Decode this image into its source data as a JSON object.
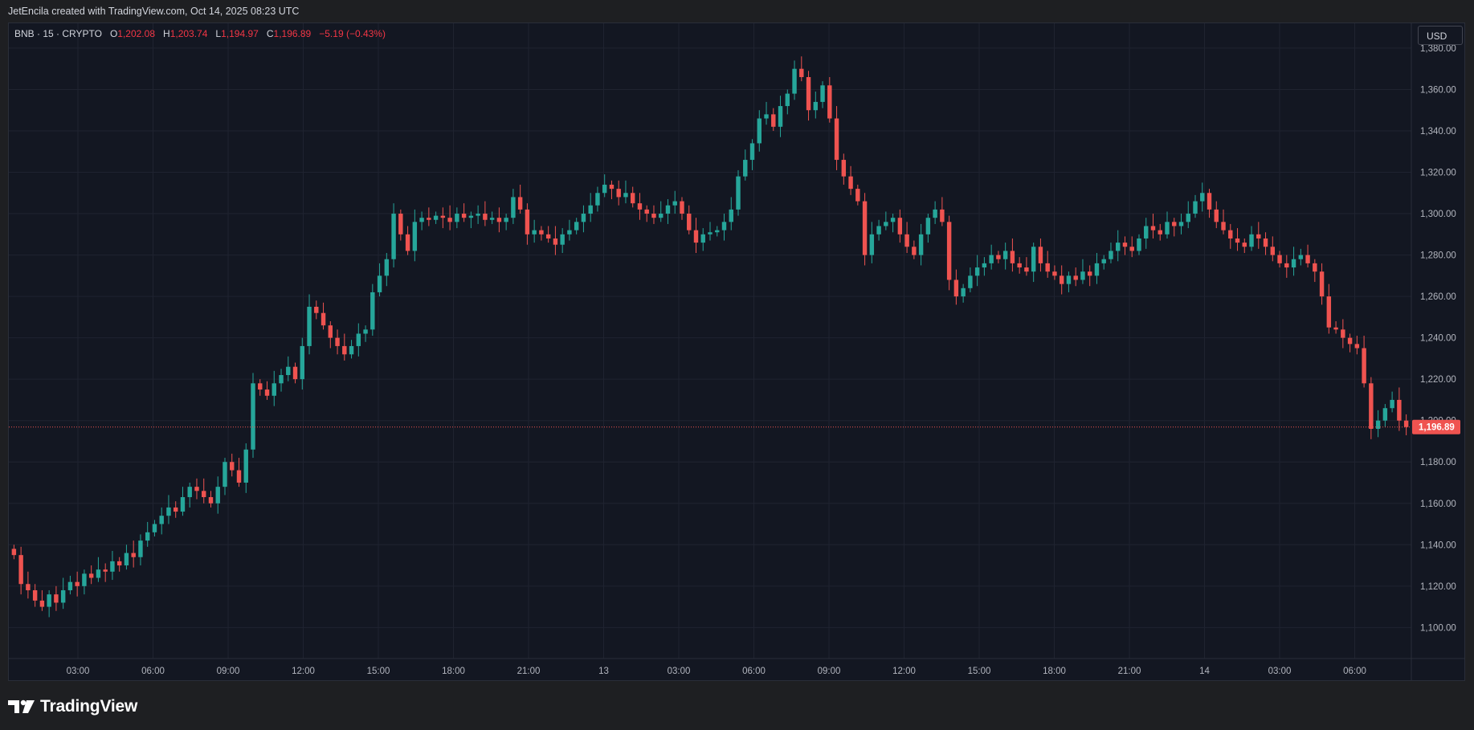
{
  "header": {
    "attribution": "JetEncila created with TradingView.com, Oct 14, 2025 08:23 UTC"
  },
  "legend": {
    "symbol": "BNB · 15 · CRYPTO",
    "open_label": "O",
    "open": "1,202.08",
    "high_label": "H",
    "high": "1,203.74",
    "low_label": "L",
    "low": "1,194.97",
    "close_label": "C",
    "close": "1,196.89",
    "change": "−5.19 (−0.43%)"
  },
  "toolbar": {
    "currency": "USD"
  },
  "footer": {
    "brand": "TradingView"
  },
  "colors": {
    "up": "#26a69a",
    "down": "#ef5350",
    "background": "#131722",
    "grid": "#1f2330",
    "last_price": "#ef5350"
  },
  "chart_data": {
    "type": "candlestick",
    "symbol": "BNB",
    "interval": "15",
    "exchange": "CRYPTO",
    "ylim": [
      1085,
      1392
    ],
    "y_ticks": [
      "1,100.00",
      "1,120.00",
      "1,140.00",
      "1,160.00",
      "1,180.00",
      "1,200.00",
      "1,220.00",
      "1,240.00",
      "1,260.00",
      "1,280.00",
      "1,300.00",
      "1,320.00",
      "1,340.00",
      "1,360.00",
      "1,380.00"
    ],
    "x_ticks": [
      "03:00",
      "06:00",
      "09:00",
      "12:00",
      "15:00",
      "18:00",
      "21:00",
      "13",
      "03:00",
      "06:00",
      "09:00",
      "12:00",
      "15:00",
      "18:00",
      "21:00",
      "14",
      "03:00",
      "06:00"
    ],
    "last_price": "1,196.89",
    "last_price_value": 1196.89,
    "grid": true,
    "close_series": [
      1135,
      1121,
      1118,
      1113,
      1110,
      1116,
      1112,
      1118,
      1122,
      1120,
      1126,
      1124,
      1128,
      1127,
      1132,
      1130,
      1136,
      1134,
      1142,
      1146,
      1150,
      1154,
      1158,
      1156,
      1163,
      1168,
      1166,
      1163,
      1160,
      1168,
      1180,
      1176,
      1170,
      1186,
      1218,
      1215,
      1212,
      1218,
      1222,
      1226,
      1220,
      1236,
      1255,
      1252,
      1246,
      1240,
      1236,
      1232,
      1236,
      1242,
      1244,
      1262,
      1270,
      1278,
      1300,
      1290,
      1282,
      1296,
      1298,
      1297,
      1299,
      1298,
      1296,
      1300,
      1298,
      1299,
      1300,
      1297,
      1298,
      1296,
      1298,
      1308,
      1302,
      1290,
      1292,
      1290,
      1288,
      1285,
      1290,
      1292,
      1296,
      1300,
      1304,
      1310,
      1314,
      1312,
      1308,
      1310,
      1305,
      1302,
      1300,
      1298,
      1300,
      1304,
      1306,
      1300,
      1292,
      1286,
      1290,
      1291,
      1292,
      1296,
      1302,
      1318,
      1326,
      1334,
      1346,
      1348,
      1342,
      1352,
      1358,
      1370,
      1366,
      1350,
      1354,
      1362,
      1346,
      1326,
      1318,
      1312,
      1306,
      1280,
      1290,
      1294,
      1296,
      1298,
      1290,
      1284,
      1280,
      1290,
      1298,
      1302,
      1296,
      1268,
      1260,
      1264,
      1270,
      1274,
      1276,
      1280,
      1278,
      1282,
      1276,
      1274,
      1272,
      1284,
      1276,
      1272,
      1270,
      1266,
      1270,
      1268,
      1272,
      1270,
      1276,
      1278,
      1282,
      1286,
      1284,
      1282,
      1288,
      1294,
      1292,
      1290,
      1296,
      1294,
      1296,
      1300,
      1306,
      1310,
      1302,
      1296,
      1292,
      1288,
      1286,
      1284,
      1290,
      1288,
      1284,
      1280,
      1276,
      1274,
      1278,
      1280,
      1276,
      1272,
      1260,
      1245,
      1244,
      1240,
      1237,
      1235,
      1218,
      1196,
      1200,
      1206,
      1210,
      1200,
      1196.89
    ]
  }
}
